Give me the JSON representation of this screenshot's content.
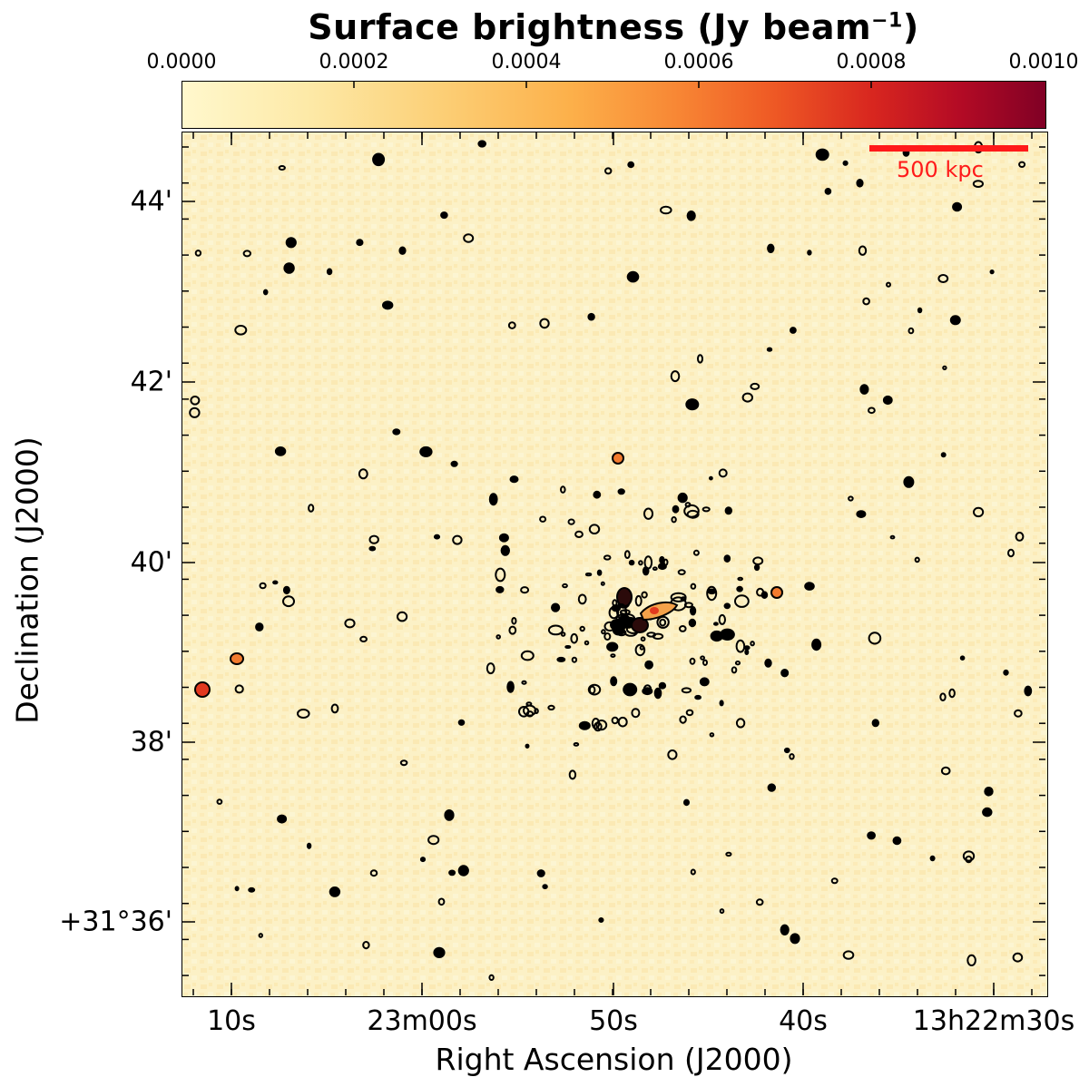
{
  "colorbar": {
    "title": "Surface brightness (Jy beam",
    "title_sup": "−1",
    "title_end": ")",
    "ticks": [
      "0.0000",
      "0.0002",
      "0.0004",
      "0.0006",
      "0.0008",
      "0.0010"
    ]
  },
  "axes": {
    "xlabel": "Right Ascension (J2000)",
    "ylabel": "Declination (J2000)",
    "xticks": [
      "10s",
      "23m00s",
      "50s",
      "40s",
      "13h22m30s"
    ],
    "yticks": [
      "44'",
      "42'",
      "40'",
      "38'",
      "+31°36'"
    ]
  },
  "scalebar": {
    "label": "500 kpc",
    "color": "#ff1a1a"
  },
  "colors": {
    "background": "#fcf1c6",
    "contour": "#000000",
    "source_core": "#e2391f"
  }
}
